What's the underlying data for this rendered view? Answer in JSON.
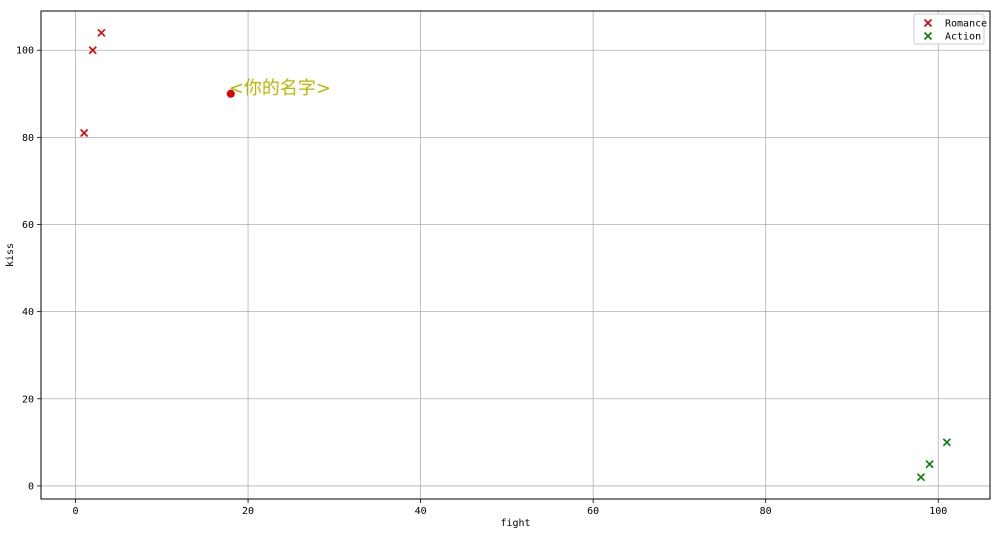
{
  "chart_data": {
    "type": "scatter",
    "title": "",
    "xlabel": "fight",
    "ylabel": "kiss",
    "xlim": [
      -4,
      106
    ],
    "ylim": [
      -3,
      109
    ],
    "xticks": [
      0,
      20,
      40,
      60,
      80,
      100
    ],
    "yticks": [
      0,
      20,
      40,
      60,
      80,
      100
    ],
    "grid": true,
    "legend_position": "top-right",
    "series": [
      {
        "name": "Romance",
        "marker": "x",
        "color": "#e00000",
        "points": [
          {
            "x": 1,
            "y": 81
          },
          {
            "x": 2,
            "y": 100
          },
          {
            "x": 3,
            "y": 104
          }
        ]
      },
      {
        "name": "Action",
        "marker": "x",
        "color": "#008000",
        "points": [
          {
            "x": 98,
            "y": 2
          },
          {
            "x": 99,
            "y": 5
          },
          {
            "x": 101,
            "y": 10
          }
        ]
      }
    ],
    "highlight_point": {
      "x": 18,
      "y": 90,
      "color": "#e00000",
      "label": "<你的名字>",
      "label_color": "#b8b800"
    }
  }
}
